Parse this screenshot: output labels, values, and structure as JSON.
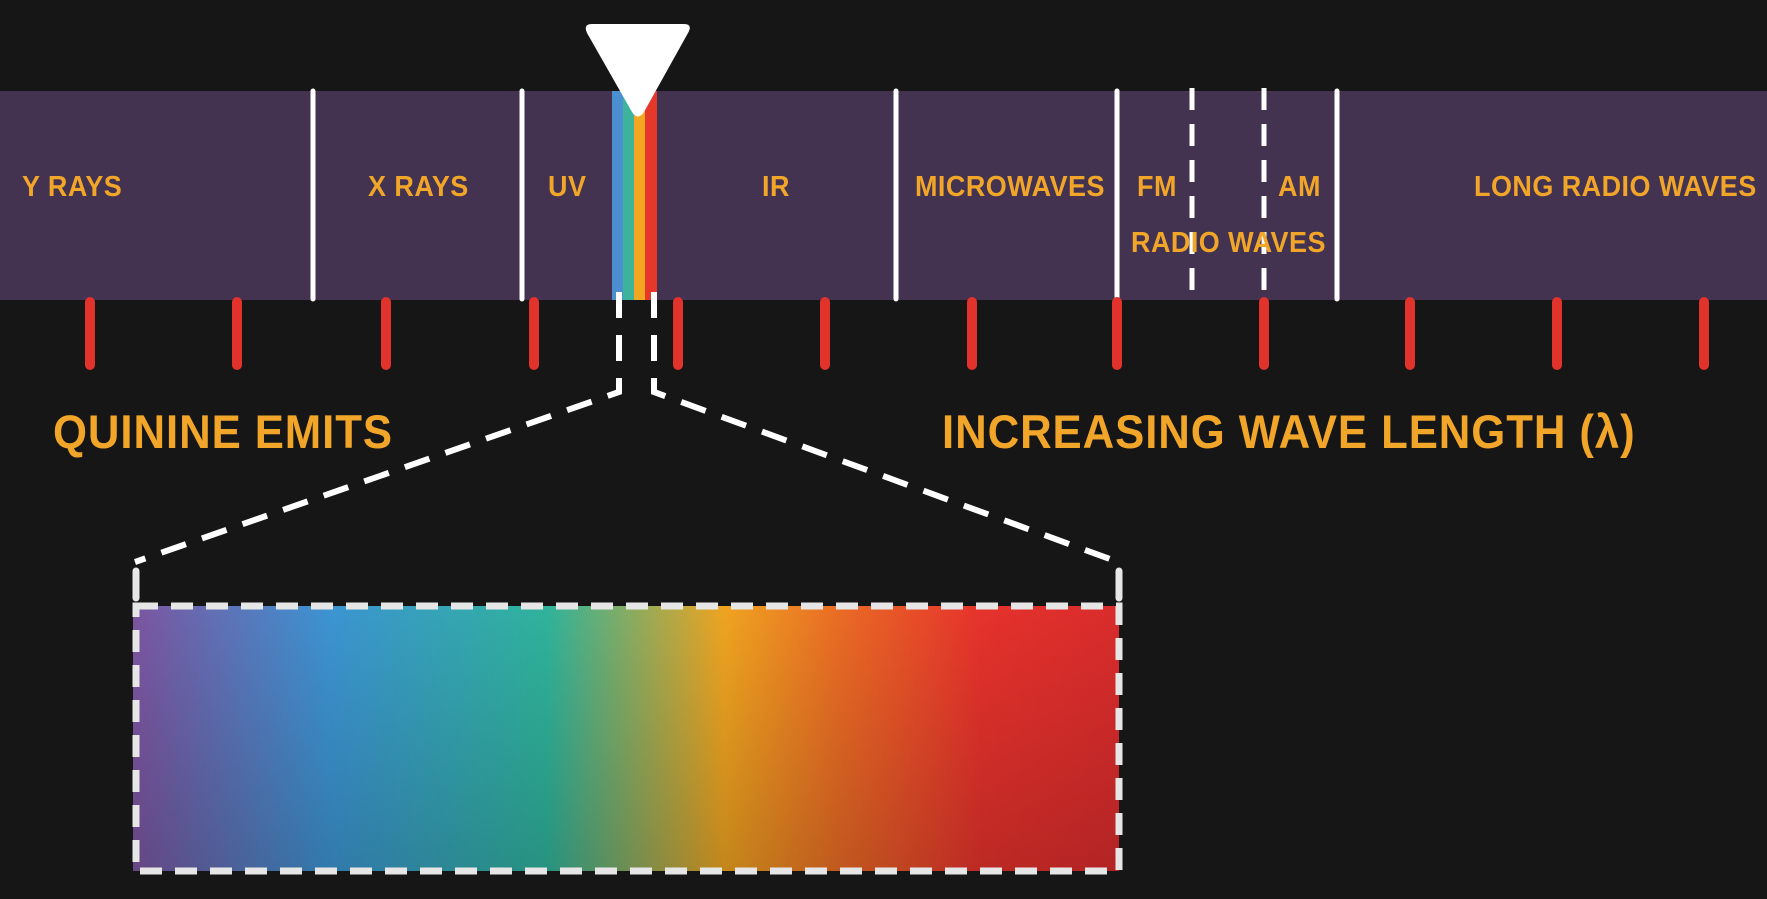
{
  "spectrum": {
    "bands": [
      {
        "key": "gamma",
        "label": "Y RAYS"
      },
      {
        "key": "xray",
        "label": "X RAYS"
      },
      {
        "key": "uv",
        "label": "UV"
      },
      {
        "key": "ir",
        "label": "IR"
      },
      {
        "key": "microwaves",
        "label": "MICROWAVES"
      },
      {
        "key": "fm",
        "label": "FM"
      },
      {
        "key": "am",
        "label": "AM"
      },
      {
        "key": "radio_waves",
        "label": "RADIO WAVES"
      },
      {
        "key": "long_radio",
        "label": "LONG RADIO WAVES"
      }
    ],
    "visible_strip_colors": [
      "#4a8fcf",
      "#3db39b",
      "#f2a622",
      "#e6372b"
    ]
  },
  "captions": {
    "left": "QUININE EMITS",
    "right": "INCREASING WAVE LENGTH (λ)"
  },
  "colors": {
    "background": "#171617",
    "band_bar": "#433350",
    "label_text": "#f1a62a",
    "tick_marks": "#e2322c",
    "divider_lines": "#ffffff"
  },
  "zoom_gradient": [
    "#7c55a0",
    "#3c94d2",
    "#2fb39b",
    "#efa420",
    "#ea6a25",
    "#e6322c",
    "#d92c2c"
  ]
}
